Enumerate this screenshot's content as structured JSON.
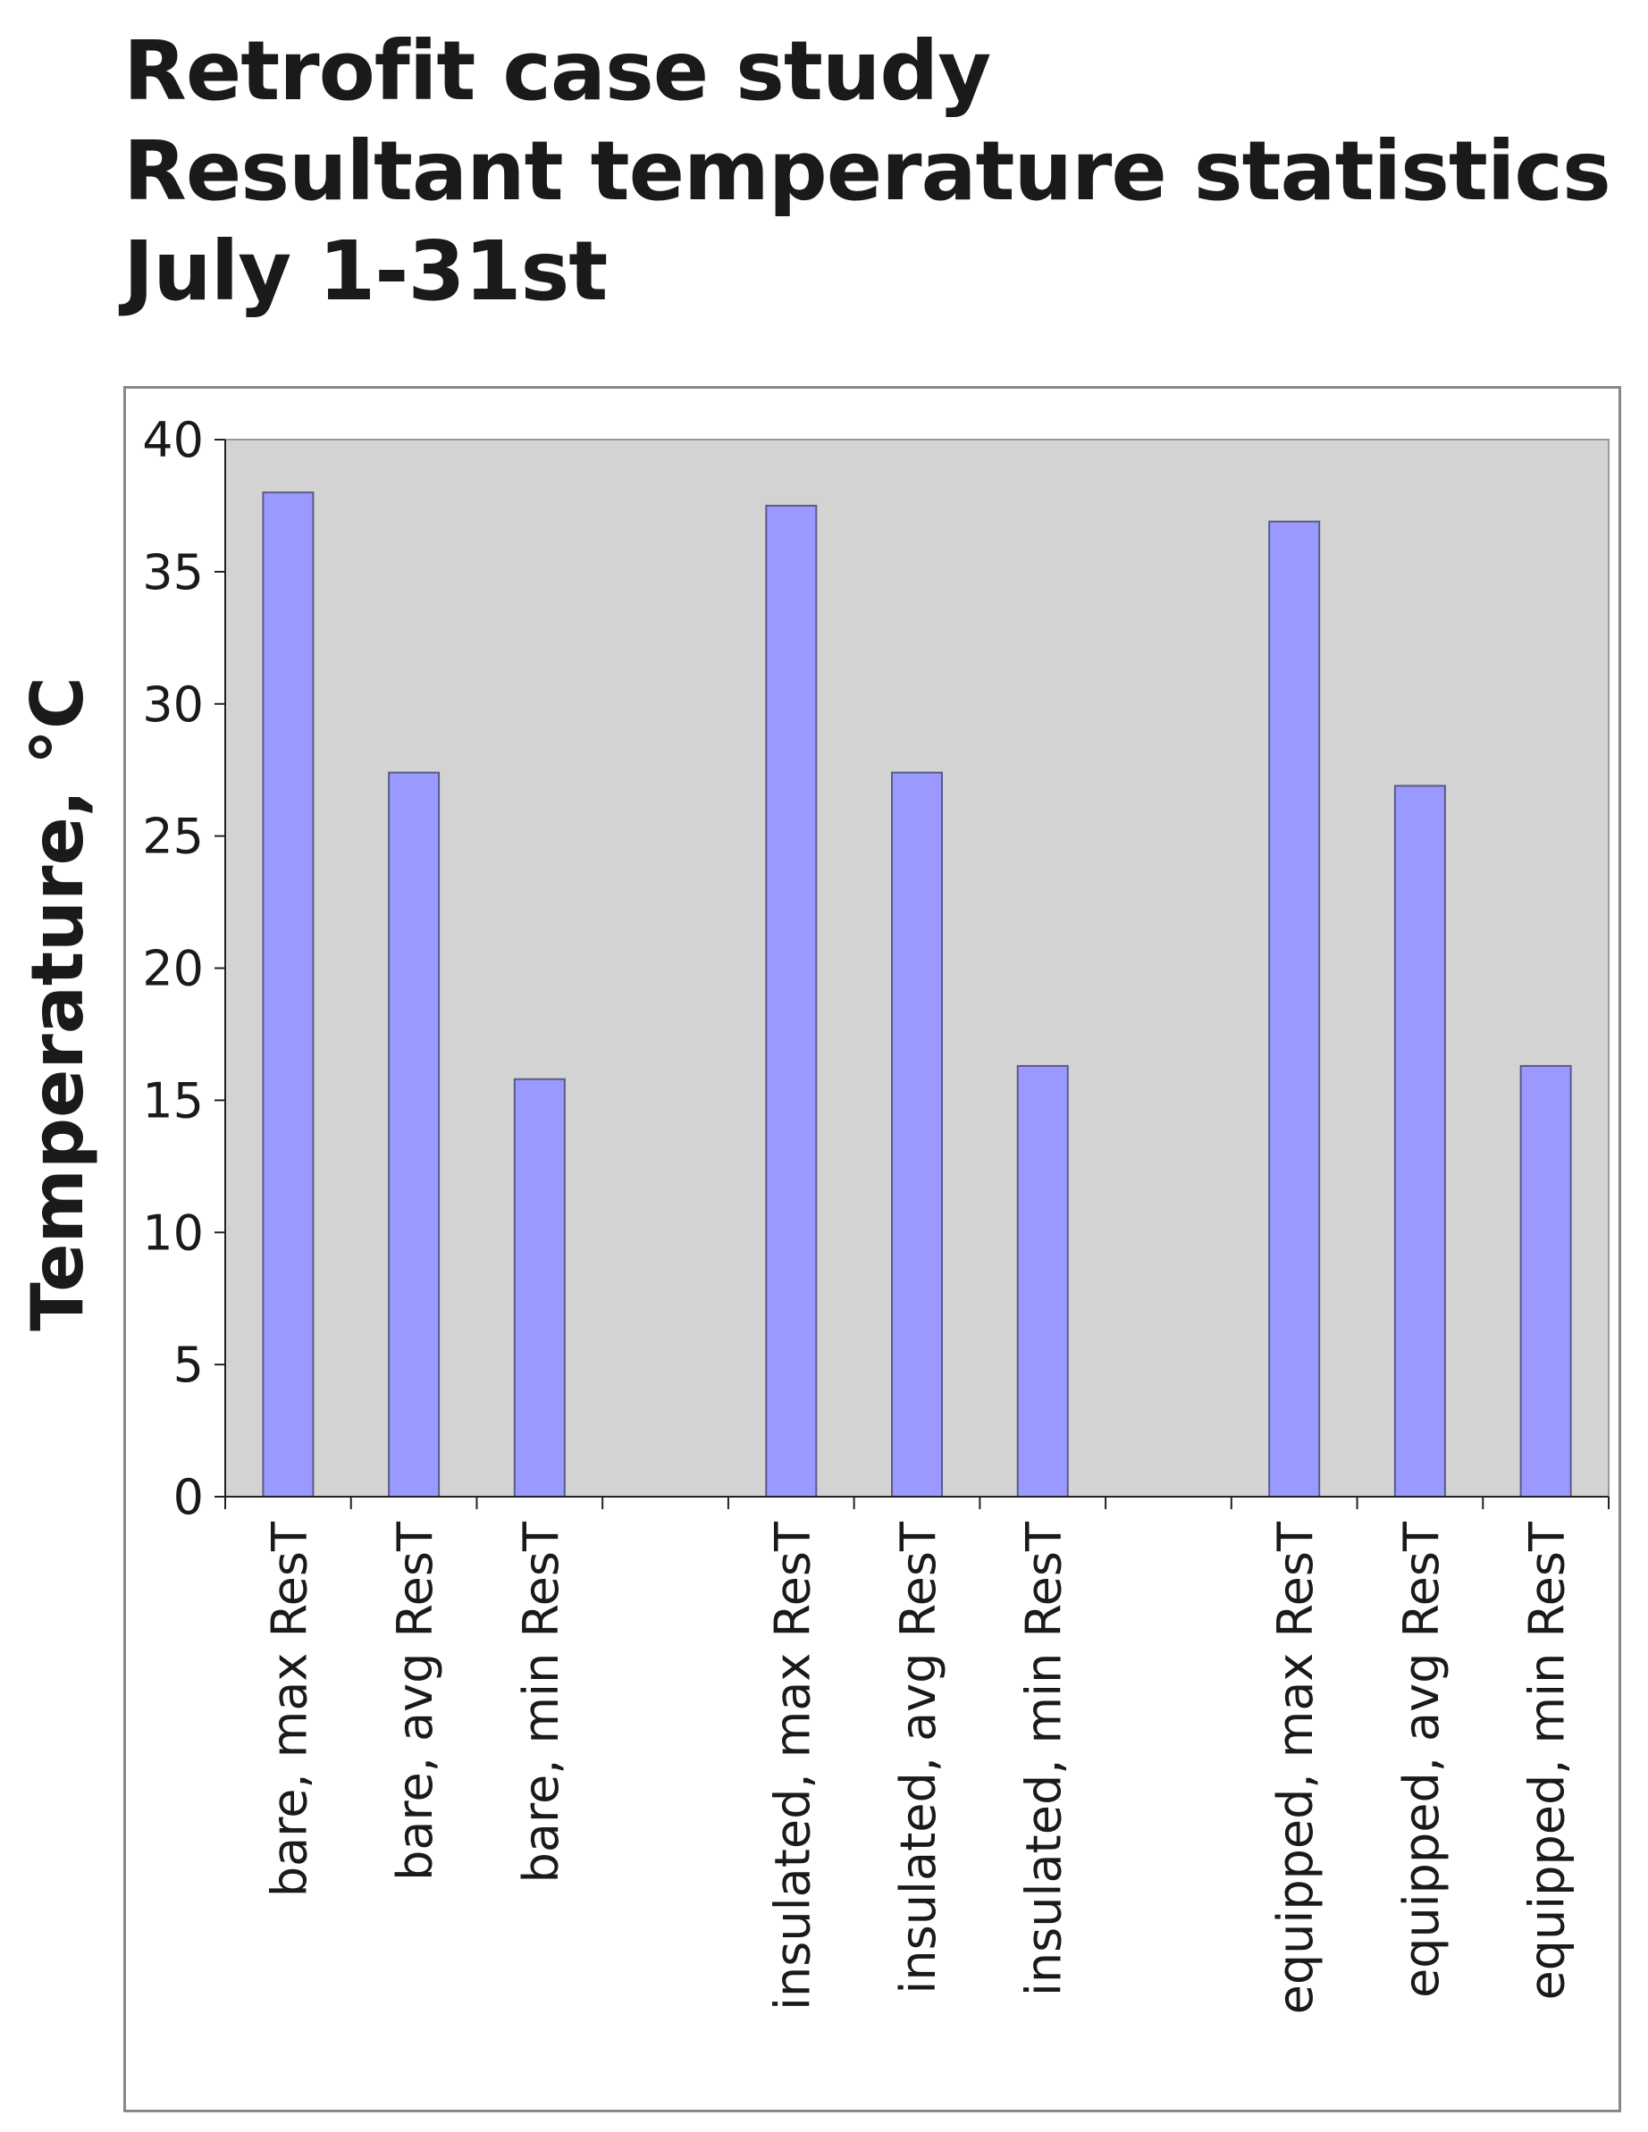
{
  "chart_data": {
    "type": "bar",
    "title_lines": [
      "Retrofit case study",
      "Resultant temperature statistics",
      "July 1-31st"
    ],
    "ylabel": "Temperature, °C",
    "xlabel": "",
    "ylim": [
      0,
      40
    ],
    "yticks": [
      0,
      5,
      10,
      15,
      20,
      25,
      30,
      35,
      40
    ],
    "grid": false,
    "legend": "none",
    "categories": [
      "bare, max ResT",
      "bare, avg ResT",
      "bare, min ResT",
      "",
      "insulated, max ResT",
      "insulated, avg ResT",
      "insulated, min ResT",
      "",
      "equipped, max ResT",
      "equipped, avg ResT",
      "equipped, min ResT"
    ],
    "values": [
      38.0,
      27.4,
      15.8,
      null,
      37.5,
      27.4,
      16.3,
      null,
      36.9,
      26.9,
      16.3
    ],
    "colors": {
      "bar_fill": "#9999ff",
      "bar_stroke": "#5a5a8a",
      "plot_background": "#d3d3d3",
      "text": "#1a1a1a"
    }
  }
}
